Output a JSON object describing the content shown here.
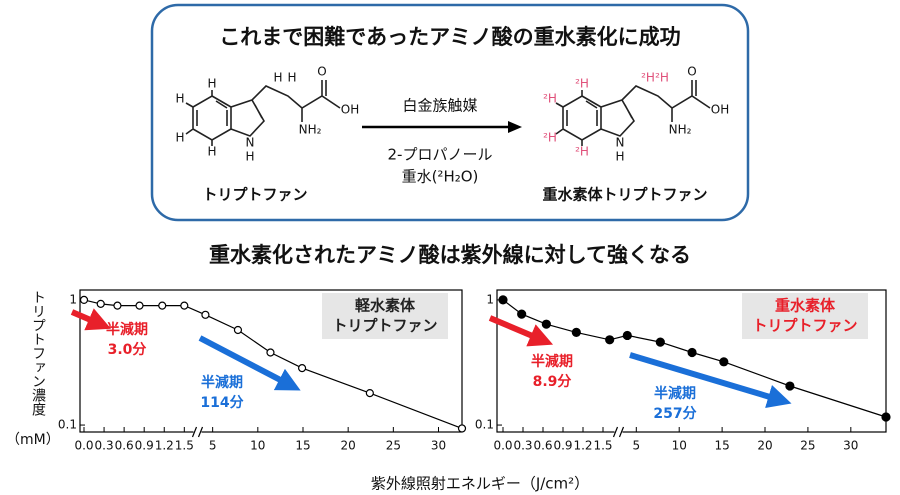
{
  "scheme": {
    "title": "これまで困難であったアミノ酸の重水素化に成功",
    "reactant": {
      "name": "トリプトファン",
      "atoms": [
        "H",
        "H",
        "H",
        "H",
        "N",
        "H",
        "H",
        "H",
        "NH₂",
        "OH",
        "O"
      ]
    },
    "reagent_above": "白金族触媒",
    "reagents_below": [
      "2-プロパノール",
      "重水(²H₂O)"
    ],
    "product": {
      "name": "重水素体トリプトファン",
      "atoms": [
        "²H",
        "²H",
        "²H",
        "²H",
        "N",
        "H",
        "²H",
        "²H",
        "NH₂",
        "OH",
        "O"
      ],
      "deuterium_color": "#e0507a"
    }
  },
  "subtitle": "重水素化されたアミノ酸は紫外線に対して強くなる",
  "axis_labels": {
    "y": "トリプトファン濃度",
    "y_unit": "（mM）",
    "x": "紫外線照射エネルギー（J/cm²）"
  },
  "chart_data": [
    {
      "type": "line",
      "label": [
        "軽水素体",
        "トリプトファン"
      ],
      "label_color": "#222",
      "marker": "open",
      "color": "#000",
      "log_y": true,
      "ylim": [
        0.088,
        1.2
      ],
      "yticks": [
        0.1,
        1
      ],
      "x_segments": [
        {
          "xlim": [
            -0.06,
            1.66
          ],
          "xticks": [
            {
              "value": 0,
              "label": "0.0"
            },
            0.3,
            0.6,
            0.9,
            1.2,
            1.5
          ]
        },
        {
          "xlim": [
            3.6,
            32.6
          ],
          "xticks": [
            5,
            10,
            15,
            20,
            25,
            30
          ]
        }
      ],
      "x": [
        0,
        0.25,
        0.5,
        0.83,
        1.17,
        1.5,
        4.2,
        7.8,
        11.4,
        14.9,
        22.4,
        32.6
      ],
      "values": [
        1.0,
        0.93,
        0.9,
        0.9,
        0.9,
        0.9,
        0.76,
        0.575,
        0.38,
        0.285,
        0.18,
        0.094
      ],
      "annotations": [
        {
          "text": [
            "半減期",
            "3.0分"
          ],
          "color": "#e8202a"
        },
        {
          "text": [
            "半減期",
            "114分"
          ],
          "color": "#1a6fd8"
        }
      ]
    },
    {
      "type": "line",
      "label": [
        "重水素体",
        "トリプトファン"
      ],
      "label_color": "#e8202a",
      "marker": "filled",
      "color": "#000",
      "log_y": true,
      "ylim": [
        0.088,
        1.2
      ],
      "yticks": [
        0.1,
        1
      ],
      "x_segments": [
        {
          "xlim": [
            -0.09,
            1.71
          ],
          "xticks": [
            {
              "value": 0,
              "label": "0.0"
            },
            0.3,
            0.6,
            0.9,
            1.2,
            1.5
          ]
        },
        {
          "xlim": [
            3.1,
            34.1
          ],
          "xticks": [
            5,
            10,
            15,
            20,
            25,
            30
          ]
        }
      ],
      "x": [
        0,
        0.28,
        0.65,
        1.1,
        1.6,
        3.95,
        7.8,
        11.5,
        15.2,
        22.9,
        34.1
      ],
      "values": [
        1.0,
        0.77,
        0.64,
        0.55,
        0.48,
        0.52,
        0.46,
        0.38,
        0.32,
        0.205,
        0.116
      ],
      "annotations": [
        {
          "text": [
            "半減期",
            "8.9分"
          ],
          "color": "#e8202a"
        },
        {
          "text": [
            "半減期",
            "257分"
          ],
          "color": "#1a6fd8"
        }
      ]
    }
  ]
}
